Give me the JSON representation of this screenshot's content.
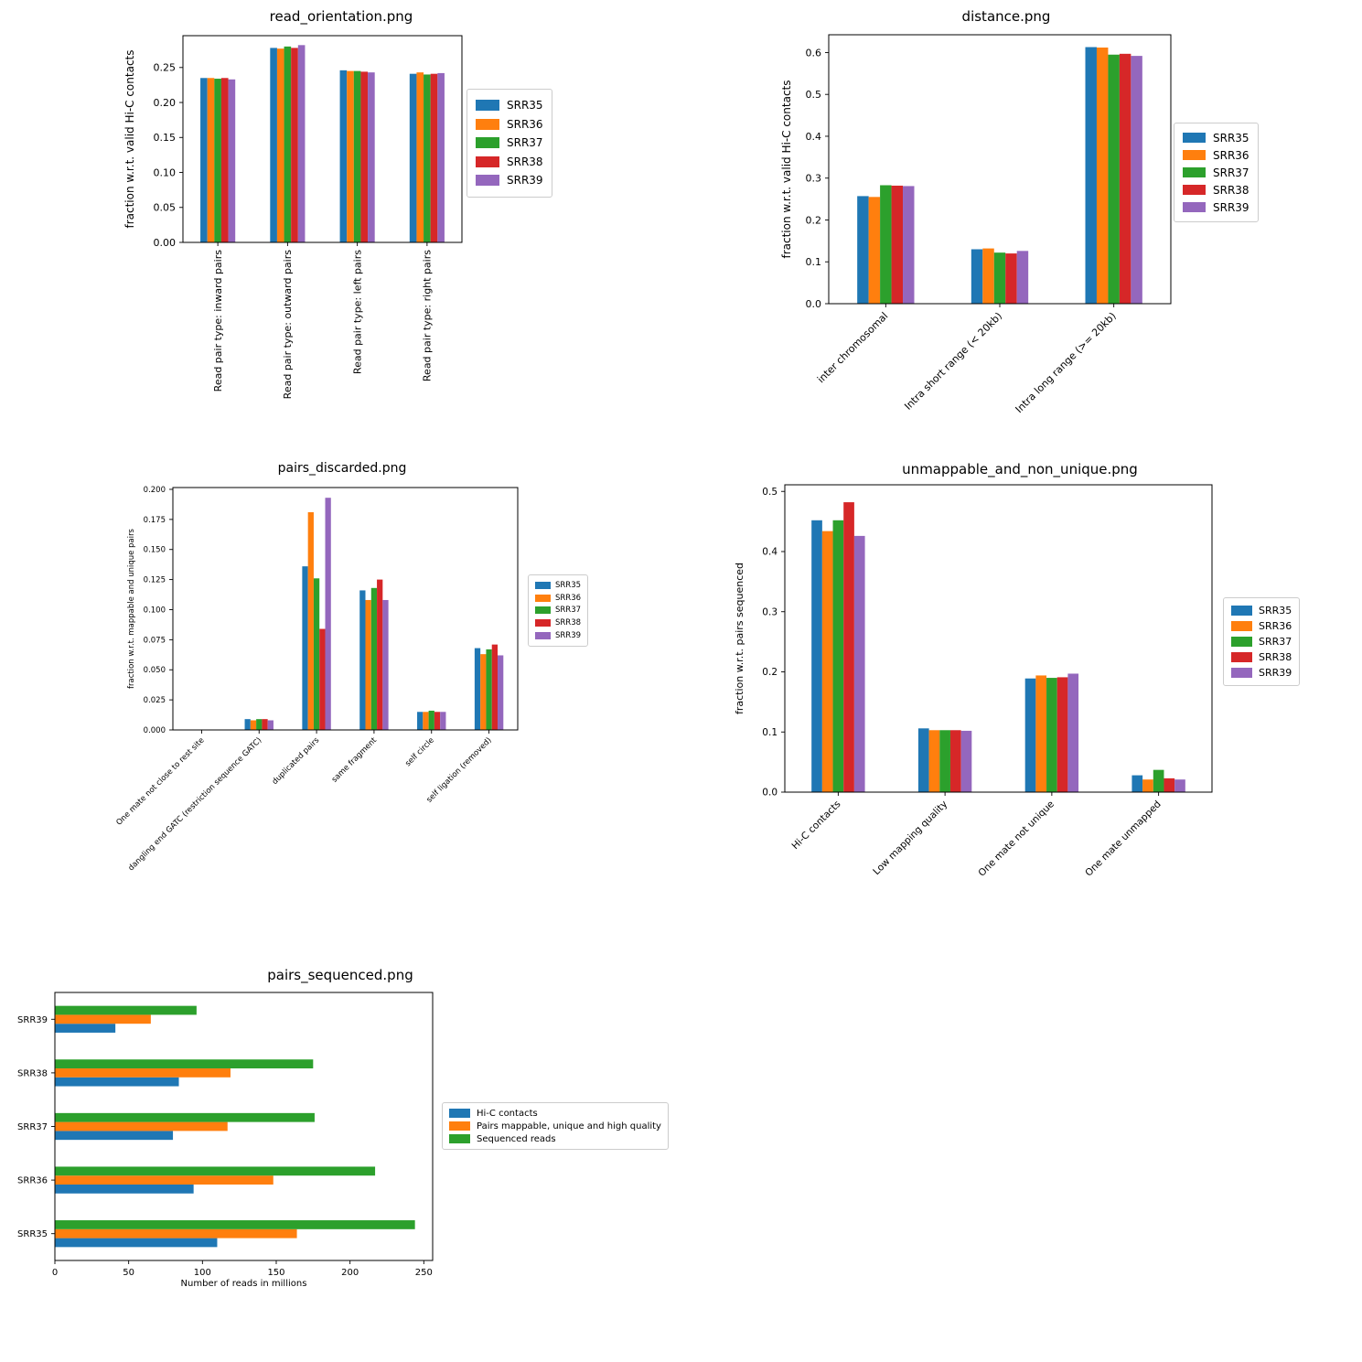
{
  "figure": {
    "background": "#ffffff"
  },
  "series_colors": {
    "SRR35": "#1f77b4",
    "SRR36": "#ff7f0e",
    "SRR37": "#2ca02c",
    "SRR38": "#d62728",
    "SRR39": "#9467bd"
  },
  "chart_data": [
    {
      "id": "read_orientation",
      "type": "bar",
      "title": "read_orientation.png",
      "ylabel": "fraction w.r.t. valid Hi-C contacts",
      "ylim": [
        0,
        0.2955
      ],
      "yticks": [
        0,
        0.05,
        0.1,
        0.15,
        0.2,
        0.25
      ],
      "ytick_decimals": 2,
      "xtick_rotation": 90,
      "grid": false,
      "legend_position": "right",
      "categories": [
        "Read pair type: inward pairs",
        "Read pair type: outward pairs",
        "Read pair type: left pairs",
        "Read pair type: right pairs"
      ],
      "series": [
        {
          "name": "SRR35",
          "color": "#1f77b4",
          "values": [
            0.235,
            0.278,
            0.246,
            0.241
          ]
        },
        {
          "name": "SRR36",
          "color": "#ff7f0e",
          "values": [
            0.235,
            0.277,
            0.245,
            0.243
          ]
        },
        {
          "name": "SRR37",
          "color": "#2ca02c",
          "values": [
            0.234,
            0.28,
            0.245,
            0.24
          ]
        },
        {
          "name": "SRR38",
          "color": "#d62728",
          "values": [
            0.235,
            0.278,
            0.244,
            0.241
          ]
        },
        {
          "name": "SRR39",
          "color": "#9467bd",
          "values": [
            0.233,
            0.282,
            0.243,
            0.242
          ]
        }
      ]
    },
    {
      "id": "distance",
      "type": "bar",
      "title": "distance.png",
      "ylabel": "fraction w.r.t. valid Hi-C contacts",
      "ylim": [
        0,
        0.6425
      ],
      "yticks": [
        0,
        0.1,
        0.2,
        0.3,
        0.4,
        0.5,
        0.6
      ],
      "ytick_decimals": 1,
      "xtick_rotation": 45,
      "grid": false,
      "legend_position": "right",
      "categories": [
        "inter chromosomal",
        "Intra short range (< 20kb)",
        "Intra long range (>= 20kb)"
      ],
      "series": [
        {
          "name": "SRR35",
          "color": "#1f77b4",
          "values": [
            0.257,
            0.13,
            0.613
          ]
        },
        {
          "name": "SRR36",
          "color": "#ff7f0e",
          "values": [
            0.255,
            0.132,
            0.612
          ]
        },
        {
          "name": "SRR37",
          "color": "#2ca02c",
          "values": [
            0.283,
            0.122,
            0.595
          ]
        },
        {
          "name": "SRR38",
          "color": "#d62728",
          "values": [
            0.282,
            0.12,
            0.597
          ]
        },
        {
          "name": "SRR39",
          "color": "#9467bd",
          "values": [
            0.281,
            0.126,
            0.592
          ]
        }
      ]
    },
    {
      "id": "pairs_discarded",
      "type": "bar",
      "title": "pairs_discarded.png",
      "ylabel": "fraction w.r.t. mappable and unique pairs",
      "ylim": [
        0,
        0.2015
      ],
      "yticks": [
        0,
        0.025,
        0.05,
        0.075,
        0.1,
        0.125,
        0.15,
        0.175,
        0.2
      ],
      "ytick_decimals": 3,
      "xtick_rotation": 45,
      "grid": false,
      "legend_position": "right",
      "categories": [
        "One mate not close to rest site",
        "dangling end GATC (restriction sequence GATC)",
        "duplicated pairs",
        "same fragment",
        "self circle",
        "self ligation (removed)"
      ],
      "series": [
        {
          "name": "SRR35",
          "color": "#1f77b4",
          "values": [
            0,
            0.009,
            0.136,
            0.116,
            0.015,
            0.068
          ]
        },
        {
          "name": "SRR36",
          "color": "#ff7f0e",
          "values": [
            0,
            0.008,
            0.181,
            0.108,
            0.015,
            0.063
          ]
        },
        {
          "name": "SRR37",
          "color": "#2ca02c",
          "values": [
            0,
            0.009,
            0.126,
            0.118,
            0.016,
            0.067
          ]
        },
        {
          "name": "SRR38",
          "color": "#d62728",
          "values": [
            0,
            0.009,
            0.084,
            0.125,
            0.015,
            0.071
          ]
        },
        {
          "name": "SRR39",
          "color": "#9467bd",
          "values": [
            0,
            0.008,
            0.193,
            0.108,
            0.015,
            0.062
          ]
        }
      ]
    },
    {
      "id": "unmappable_and_non_unique",
      "type": "bar",
      "title": "unmappable_and_non_unique.png",
      "ylabel": "fraction w.r.t. pairs sequenced",
      "ylim": [
        0,
        0.511
      ],
      "yticks": [
        0,
        0.1,
        0.2,
        0.3,
        0.4,
        0.5
      ],
      "ytick_decimals": 1,
      "xtick_rotation": 45,
      "grid": false,
      "legend_position": "right",
      "categories": [
        "Hi-C contacts",
        "Low mapping quality",
        "One mate not unique",
        "One mate unmapped"
      ],
      "series": [
        {
          "name": "SRR35",
          "color": "#1f77b4",
          "values": [
            0.452,
            0.106,
            0.189,
            0.028
          ]
        },
        {
          "name": "SRR36",
          "color": "#ff7f0e",
          "values": [
            0.434,
            0.103,
            0.194,
            0.021
          ]
        },
        {
          "name": "SRR37",
          "color": "#2ca02c",
          "values": [
            0.452,
            0.103,
            0.19,
            0.037
          ]
        },
        {
          "name": "SRR38",
          "color": "#d62728",
          "values": [
            0.482,
            0.103,
            0.191,
            0.023
          ]
        },
        {
          "name": "SRR39",
          "color": "#9467bd",
          "values": [
            0.426,
            0.102,
            0.197,
            0.021
          ]
        }
      ]
    },
    {
      "id": "pairs_sequenced",
      "type": "barh",
      "title": "pairs_sequenced.png",
      "xlabel": "Number of reads in millions",
      "xlim": [
        0,
        256
      ],
      "xticks": [
        0,
        50,
        100,
        150,
        200,
        250
      ],
      "xtick_decimals": 0,
      "grid": false,
      "legend_position": "right",
      "categories": [
        "SRR35",
        "SRR36",
        "SRR37",
        "SRR38",
        "SRR39"
      ],
      "series": [
        {
          "name": "Hi-C contacts",
          "color": "#1f77b4",
          "values": [
            110,
            94,
            80,
            84,
            41
          ]
        },
        {
          "name": "Pairs mappable, unique and high quality",
          "color": "#ff7f0e",
          "values": [
            164,
            148,
            117,
            119,
            65
          ]
        },
        {
          "name": "Sequenced reads",
          "color": "#2ca02c",
          "values": [
            244,
            217,
            176,
            175,
            96
          ]
        }
      ]
    }
  ]
}
